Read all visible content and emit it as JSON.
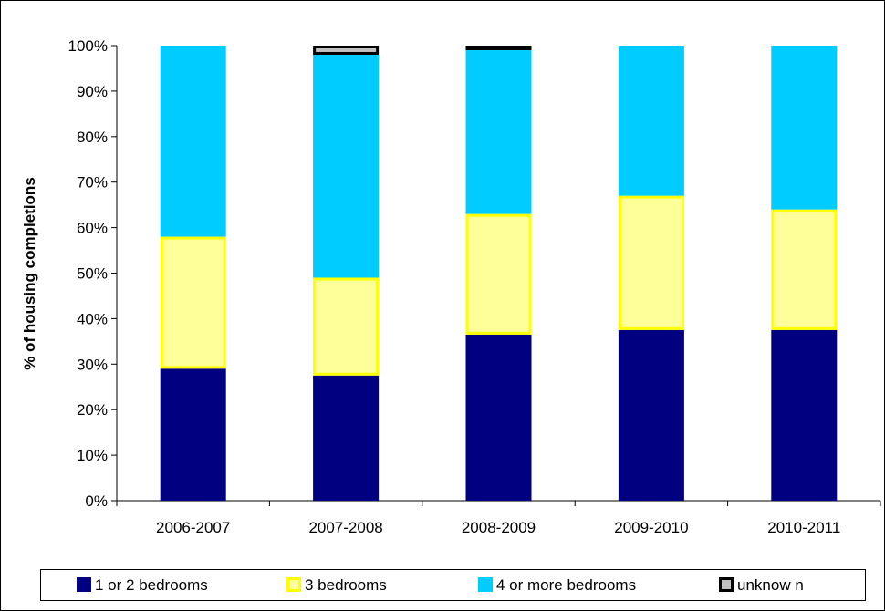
{
  "chart_data": {
    "type": "bar",
    "stacked": true,
    "percent_stacked": true,
    "categories": [
      "2006-2007",
      "2007-2008",
      "2008-2009",
      "2009-2010",
      "2010-2011"
    ],
    "series": [
      {
        "name": "1 or 2 bedrooms",
        "color": "#000080",
        "border": "#000080",
        "values": [
          29,
          27.5,
          36.5,
          37.5,
          37.5
        ]
      },
      {
        "name": "3 bedrooms",
        "color": "#FFFF99",
        "border": "#FFFF00",
        "values": [
          29,
          21.5,
          26.5,
          29.5,
          26.5
        ]
      },
      {
        "name": "4 or more bedrooms",
        "color": "#00CCFF",
        "border": "#00CCFF",
        "values": [
          42,
          49,
          36,
          33,
          36
        ]
      },
      {
        "name": "unknow n",
        "color": "#C0C0C0",
        "border": "#000000",
        "values": [
          0,
          2,
          1,
          0,
          0
        ]
      }
    ],
    "title": "",
    "xlabel": "",
    "ylabel": "% of housing completions",
    "ylim": [
      0,
      100
    ],
    "yticks": [
      "0%",
      "10%",
      "20%",
      "30%",
      "40%",
      "50%",
      "60%",
      "70%",
      "80%",
      "90%",
      "100%"
    ],
    "grid": false,
    "legend_position": "bottom"
  }
}
